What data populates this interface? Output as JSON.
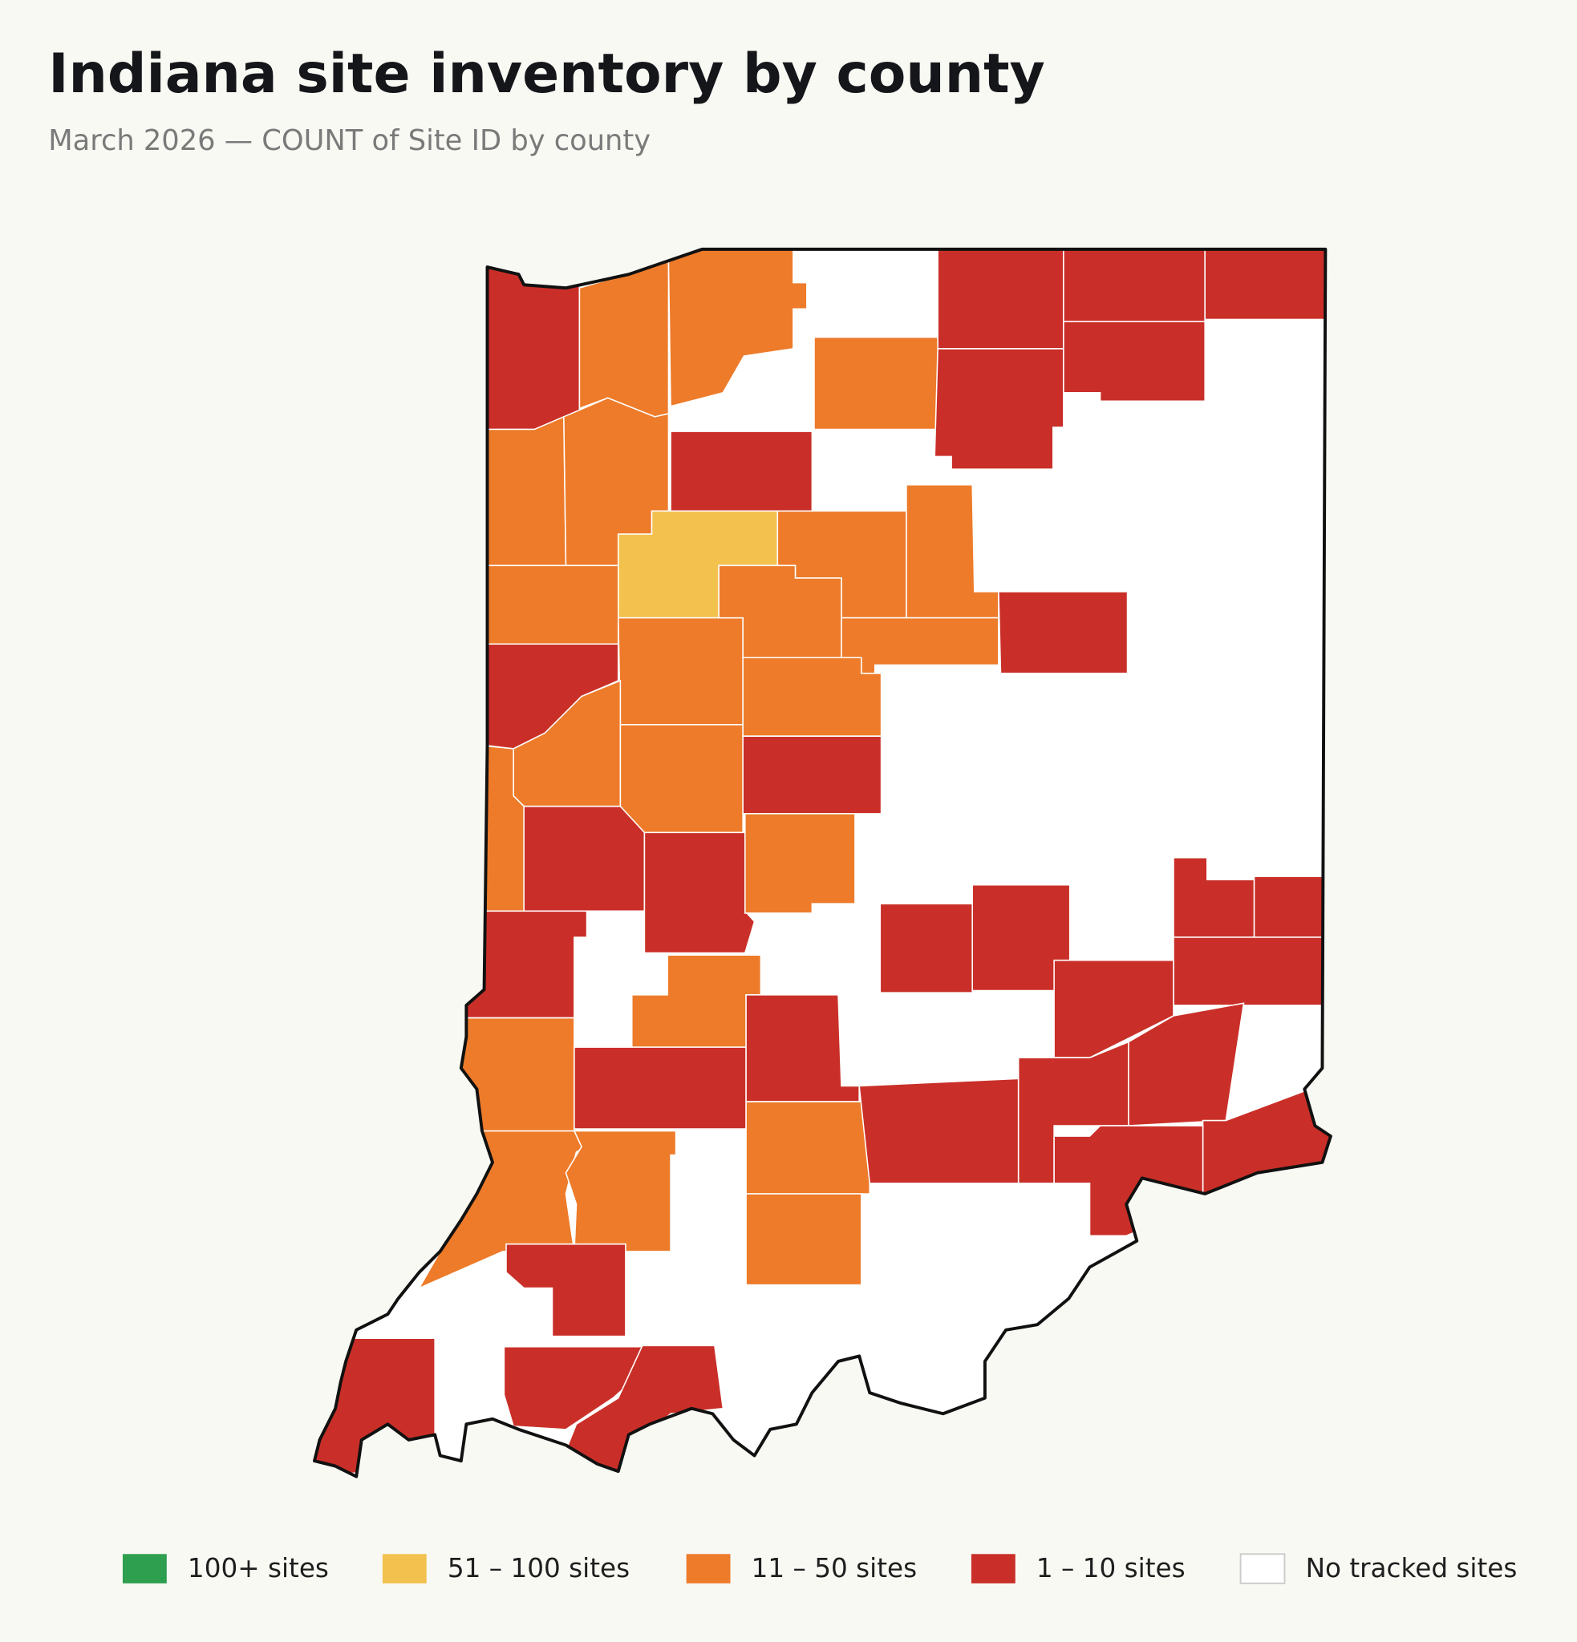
{
  "title": "Indiana site inventory by county",
  "subtitle": "March 2026 — COUNT of Site ID by county",
  "legend": [
    {
      "label": "100+ sites",
      "color": "#2e9e4f"
    },
    {
      "label": "51 – 100 sites",
      "color": "#f2c14e"
    },
    {
      "label": "11 – 50 sites",
      "color": "#ed7b2a"
    },
    {
      "label": "1 – 10 sites",
      "color": "#c92f28"
    },
    {
      "label": "No tracked sites",
      "color": "#ffffff"
    }
  ]
}
